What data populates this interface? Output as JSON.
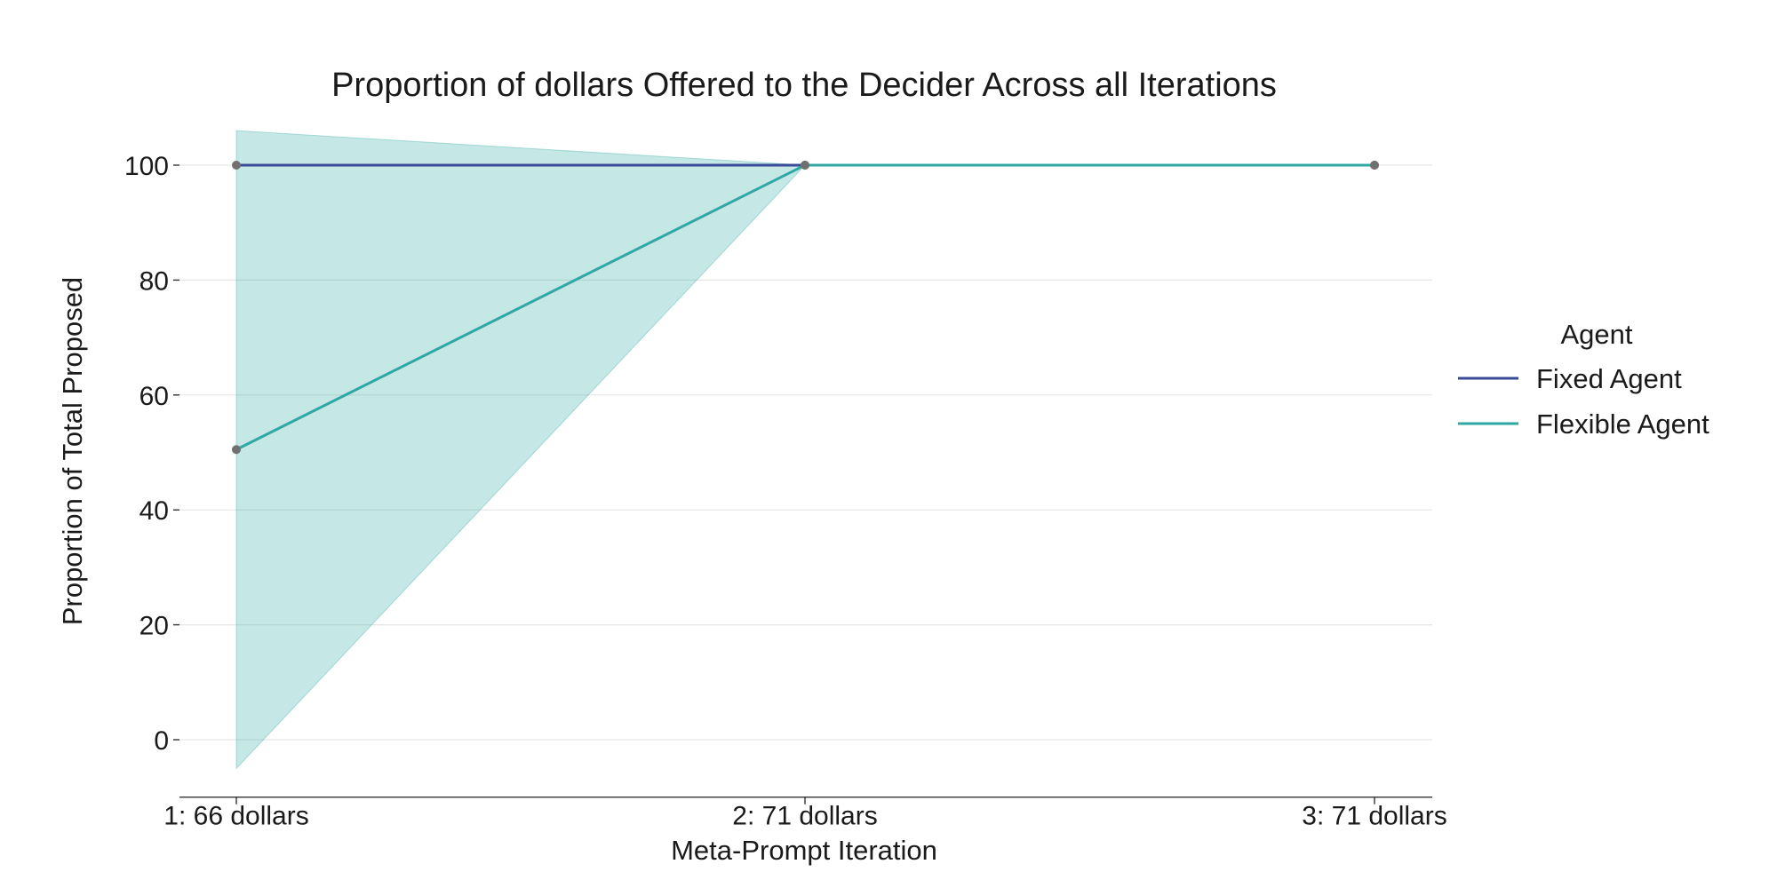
{
  "chart_data": {
    "type": "line",
    "title": "Proportion of dollars Offered to the Decider Across all Iterations",
    "xlabel": "Meta-Prompt Iteration",
    "ylabel": "Proportion of Total Proposed",
    "categories": [
      "1: 66 dollars",
      "2: 71 dollars",
      "3: 71 dollars"
    ],
    "ylim": [
      -10,
      107
    ],
    "yticks": [
      0,
      20,
      40,
      60,
      80,
      100
    ],
    "grid": "horizontal",
    "legend": {
      "title": "Agent",
      "placement": "right"
    },
    "series": [
      {
        "name": "Fixed Agent",
        "color": "#3b4a96",
        "values": [
          100,
          100,
          100
        ],
        "ci_lower": [
          100,
          100,
          100
        ],
        "ci_upper": [
          100,
          100,
          100
        ]
      },
      {
        "name": "Flexible Agent",
        "color": "#2ea8a3",
        "values": [
          50.5,
          100,
          100
        ],
        "ci_lower": [
          -5,
          100,
          100
        ],
        "ci_upper": [
          106,
          100,
          100
        ]
      }
    ],
    "marker_color": "#707070"
  }
}
